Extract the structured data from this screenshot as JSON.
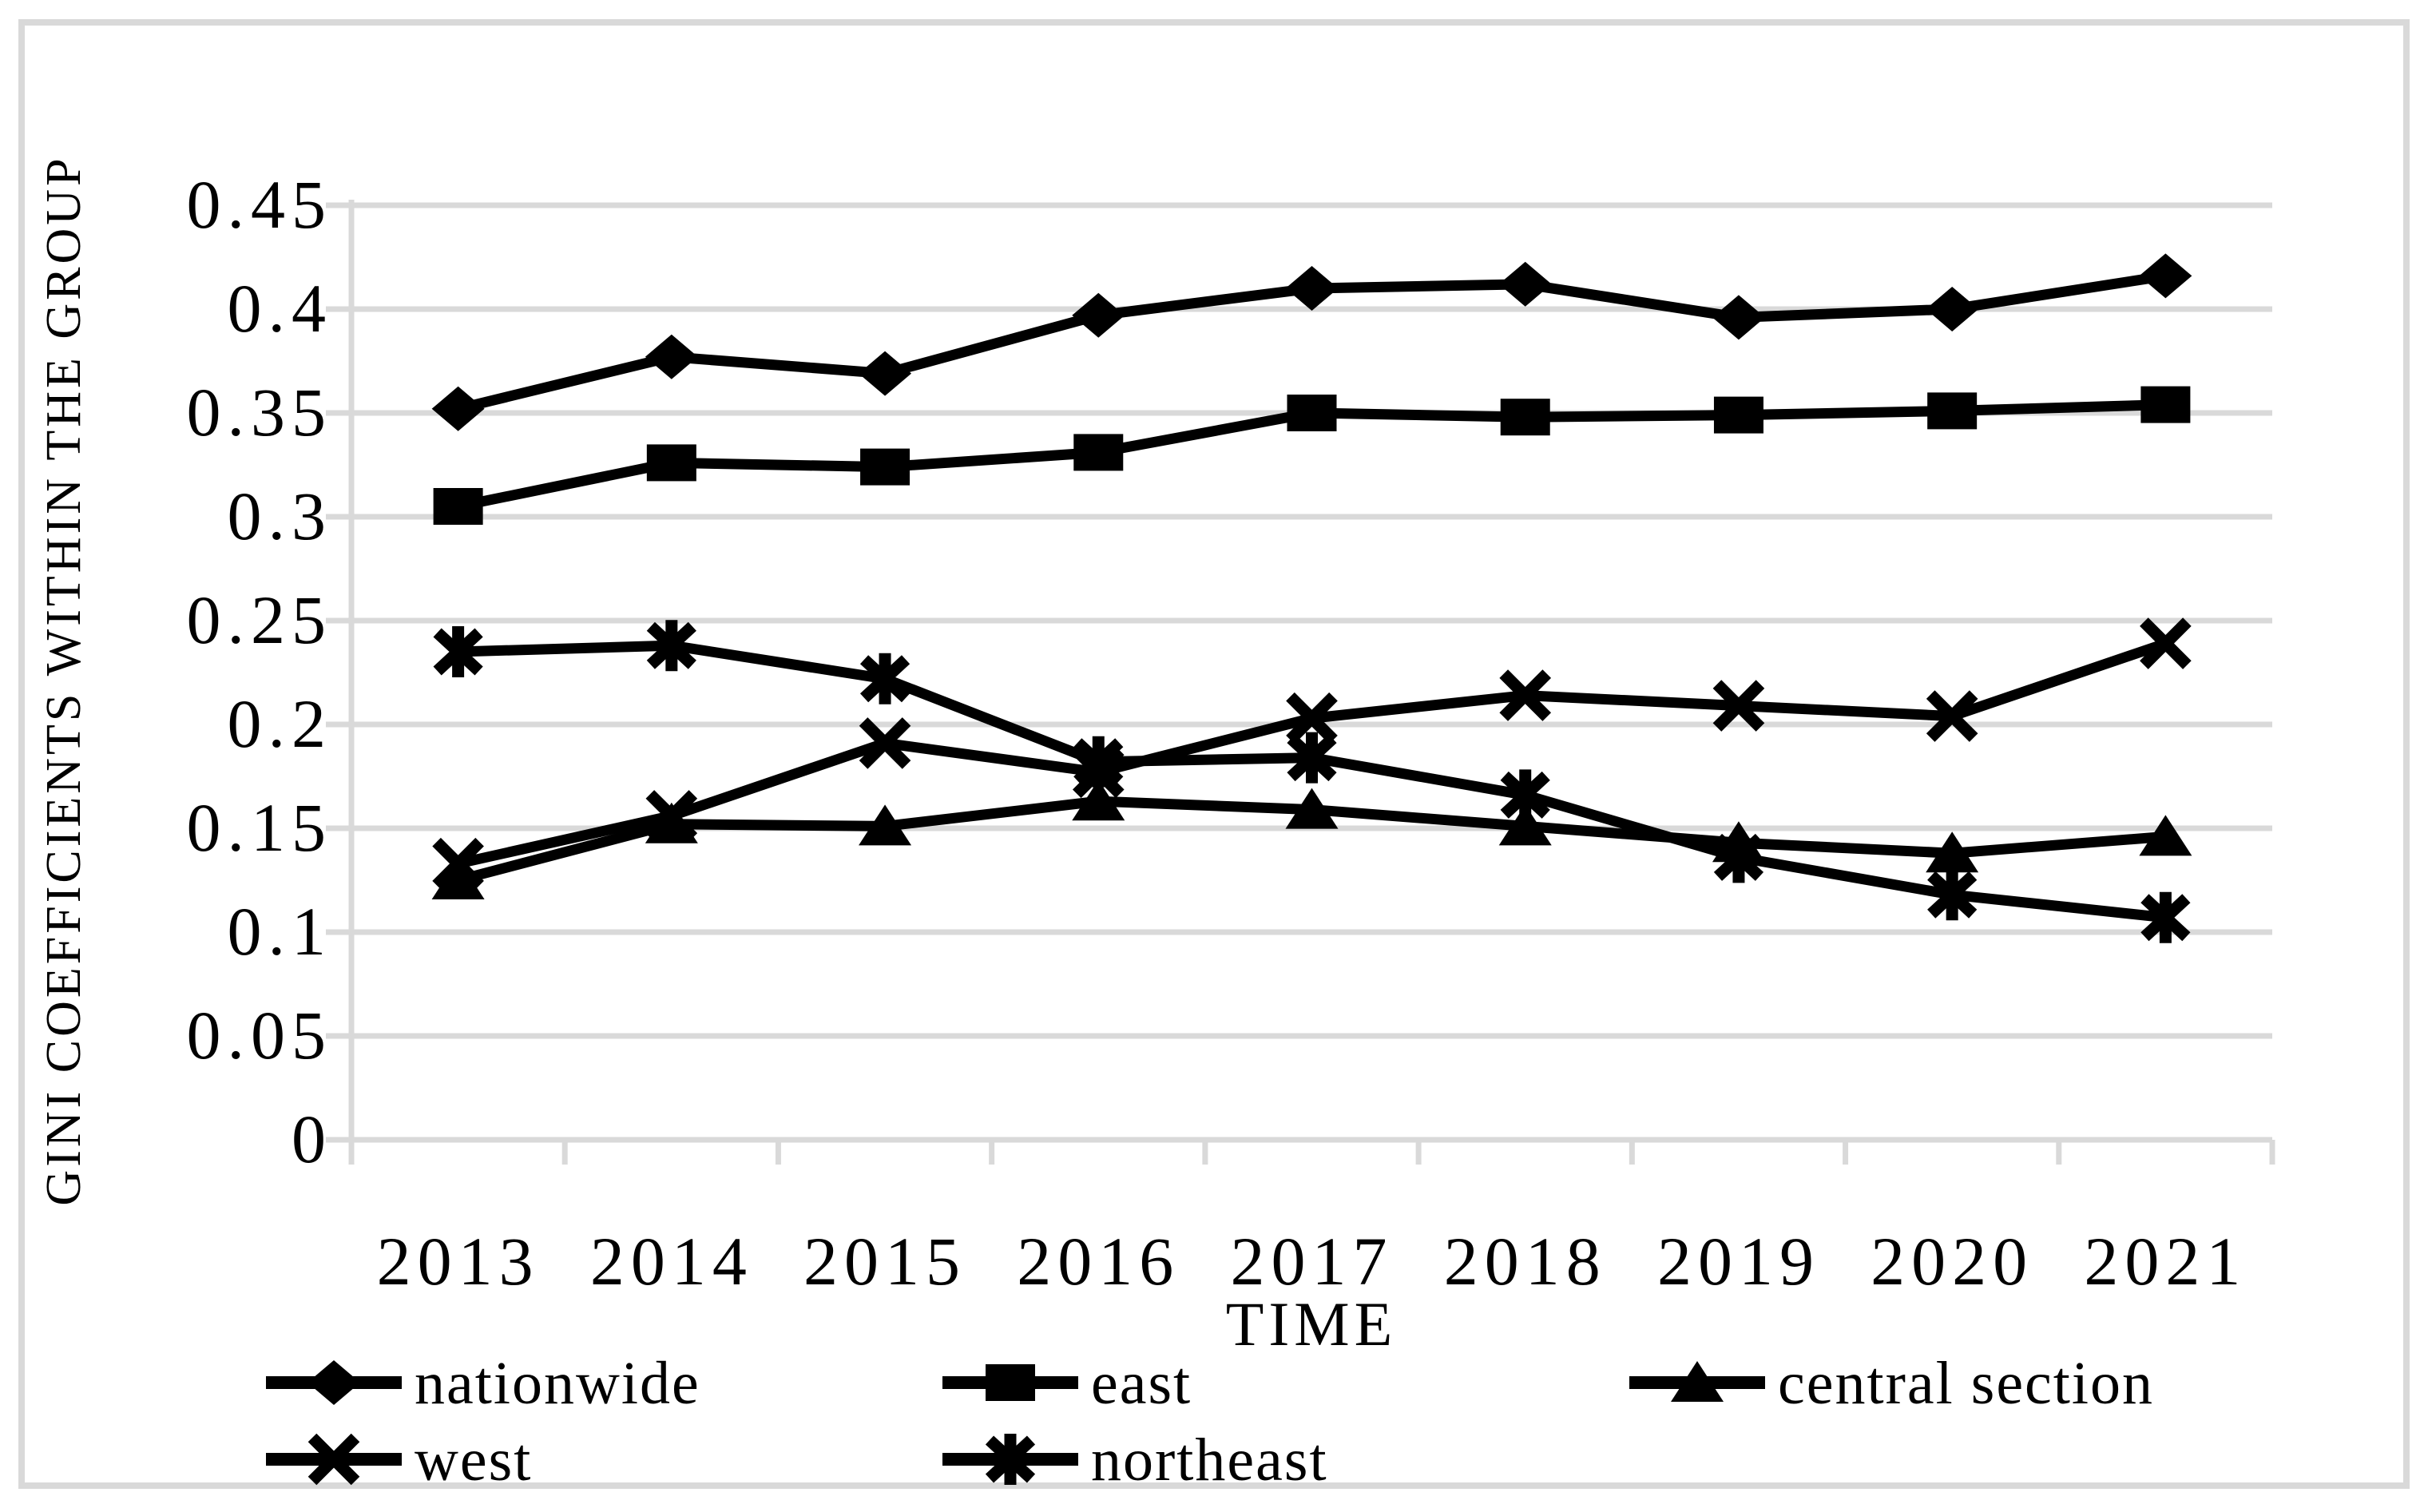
{
  "figure": {
    "description": "Line chart of Gini coefficients within regional groups over time"
  },
  "colors": {
    "series": "#000000",
    "grid": "#d9d9d9",
    "axis": "#d9d9d9",
    "border": "#d9d9d9",
    "text": "#000000",
    "background": "#ffffff"
  },
  "chart_data": {
    "type": "line",
    "title": "",
    "xlabel": "TIME",
    "ylabel": "GINI COEFFICIENTS WITHIN THE GROUP",
    "categories": [
      "2013",
      "2014",
      "2015",
      "2016",
      "2017",
      "2018",
      "2019",
      "2020",
      "2021"
    ],
    "y_tick_labels": [
      "0",
      "0.05",
      "0.1",
      "0.15",
      "0.2",
      "0.25",
      "0.3",
      "0.35",
      "0.4",
      "0.45"
    ],
    "ylim": [
      0,
      0.45
    ],
    "y_step": 0.05,
    "grid": true,
    "legend_position": "bottom",
    "series": [
      {
        "name": "nationwide",
        "marker": "diamond",
        "values": [
          0.352,
          0.377,
          0.369,
          0.397,
          0.41,
          0.412,
          0.396,
          0.4,
          0.416
        ]
      },
      {
        "name": "east",
        "marker": "square",
        "values": [
          0.305,
          0.326,
          0.324,
          0.331,
          0.35,
          0.348,
          0.349,
          0.351,
          0.354
        ]
      },
      {
        "name": "central section",
        "marker": "triangle",
        "values": [
          0.125,
          0.152,
          0.151,
          0.163,
          0.159,
          0.151,
          0.143,
          0.138,
          0.146
        ]
      },
      {
        "name": "west",
        "marker": "x",
        "values": [
          0.133,
          0.156,
          0.191,
          0.177,
          0.203,
          0.214,
          0.209,
          0.204,
          0.239
        ]
      },
      {
        "name": "northeast",
        "marker": "asterisk",
        "values": [
          0.235,
          0.238,
          0.222,
          0.182,
          0.184,
          0.166,
          0.136,
          0.118,
          0.107
        ]
      }
    ]
  }
}
